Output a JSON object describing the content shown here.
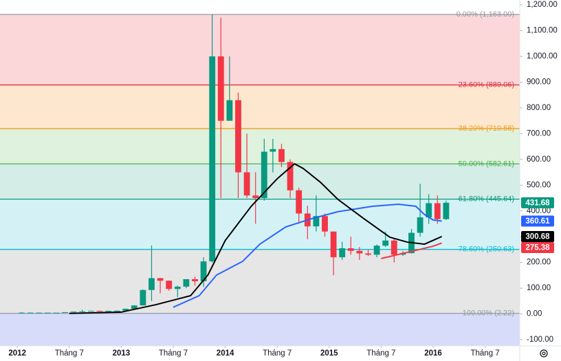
{
  "chart_data": {
    "type": "candlestick",
    "x": [
      "2012-01",
      "2012-02",
      "2012-03",
      "2012-04",
      "2012-05",
      "2012-06",
      "2012-07",
      "2012-08",
      "2012-09",
      "2012-10",
      "2012-11",
      "2012-12",
      "2013-01",
      "2013-02",
      "2013-03",
      "2013-04",
      "2013-05",
      "2013-06",
      "2013-07",
      "2013-08",
      "2013-09",
      "2013-10",
      "2013-11",
      "2013-12",
      "2014-01",
      "2014-02",
      "2014-03",
      "2014-04",
      "2014-05",
      "2014-06",
      "2014-07",
      "2014-08",
      "2014-09",
      "2014-10",
      "2014-11",
      "2014-12",
      "2015-01",
      "2015-02",
      "2015-03",
      "2015-04",
      "2015-05",
      "2015-06",
      "2015-07",
      "2015-08",
      "2015-09",
      "2015-10",
      "2015-11",
      "2015-12",
      "2016-01",
      "2016-02"
    ],
    "open": [
      5,
      5,
      5,
      5,
      5,
      5,
      7,
      9,
      10,
      12,
      11,
      12,
      13,
      20,
      33,
      93,
      139,
      129,
      97,
      106,
      135,
      127,
      204,
      1000,
      750,
      830,
      550,
      460,
      450,
      630,
      640,
      590,
      480,
      390,
      340,
      380,
      320,
      220,
      255,
      245,
      235,
      230,
      265,
      285,
      230,
      236,
      315,
      375,
      430,
      368
    ],
    "high": [
      7,
      6,
      5,
      5,
      5,
      7,
      9,
      16,
      13,
      13,
      13,
      14,
      21,
      34,
      95,
      266,
      140,
      130,
      110,
      135,
      145,
      220,
      1163,
      1150,
      1000,
      860,
      700,
      550,
      680,
      680,
      660,
      600,
      490,
      420,
      460,
      390,
      320,
      280,
      300,
      260,
      250,
      270,
      320,
      290,
      245,
      330,
      505,
      465,
      460,
      440
    ],
    "low": [
      4,
      4,
      4,
      5,
      5,
      5,
      6,
      7,
      10,
      10,
      10,
      12,
      13,
      20,
      33,
      50,
      80,
      90,
      65,
      100,
      110,
      105,
      200,
      450,
      750,
      450,
      450,
      350,
      440,
      550,
      570,
      450,
      350,
      290,
      320,
      300,
      150,
      210,
      230,
      210,
      225,
      220,
      260,
      200,
      225,
      235,
      300,
      350,
      350,
      365
    ],
    "close": [
      5,
      5,
      5,
      5,
      5,
      7,
      9,
      10,
      12,
      11,
      12,
      13,
      20,
      33,
      93,
      139,
      129,
      97,
      106,
      135,
      127,
      204,
      1000,
      750,
      830,
      550,
      460,
      450,
      630,
      640,
      590,
      480,
      390,
      340,
      380,
      320,
      220,
      255,
      245,
      235,
      230,
      265,
      285,
      230,
      236,
      315,
      375,
      430,
      368,
      431.68
    ],
    "up_color": "#089981",
    "down_color": "#f23645",
    "series": [
      {
        "color": "#2962ff",
        "x": [
          "2013-07",
          "2013-10",
          "2013-12",
          "2014-03",
          "2014-05",
          "2014-08",
          "2014-11",
          "2015-02",
          "2015-06",
          "2015-09",
          "2015-11",
          "2015-12",
          "2016-01",
          "2016-02"
        ],
        "values": [
          26,
          71,
          151,
          204,
          271,
          338,
          370,
          397,
          418,
          426,
          418,
          386,
          365,
          360.61
        ]
      },
      {
        "color": "#000000",
        "x": [
          "2012-07",
          "2013-01",
          "2013-05",
          "2013-09",
          "2013-11",
          "2014-01",
          "2014-04",
          "2014-07",
          "2014-09",
          "2014-10",
          "2014-12",
          "2015-02",
          "2015-05",
          "2015-08",
          "2015-10",
          "2015-12",
          "2016-02"
        ],
        "values": [
          2,
          7,
          36,
          71,
          151,
          285,
          418,
          525,
          583,
          565,
          511,
          445,
          370,
          298,
          279,
          271,
          300.68
        ]
      },
      {
        "color": "#f23645",
        "x": [
          "2015-07",
          "2015-10",
          "2016-01",
          "2016-02"
        ],
        "values": [
          215,
          239,
          263,
          275.38
        ]
      }
    ],
    "fib_levels": [
      {
        "value": 1163,
        "label": "0.00% (1,163.00)",
        "color": "#9598a1",
        "fill": "#fbd7da"
      },
      {
        "value": 889.06,
        "label": "23.60% (889.06)",
        "color": "#e0313f",
        "fill": "#fde7cf"
      },
      {
        "value": 719.58,
        "label": "38.20% (719.58)",
        "color": "#f59c1a",
        "fill": "#def2de"
      },
      {
        "value": 582.61,
        "label": "50.00% (582.61)",
        "color": "#4caf50",
        "fill": "#d4ede6"
      },
      {
        "value": 445.64,
        "label": "61.80% (445.64)",
        "color": "#089981",
        "fill": "#d4f2f5"
      },
      {
        "value": 250.63,
        "label": "78.60% (250.63)",
        "color": "#00bcd4",
        "fill": "#e6e6e6"
      },
      {
        "value": 2.22,
        "label": "100.00% (2.22)",
        "color": "#9598a1",
        "fill": "#d6dcfa"
      }
    ],
    "ylim": [
      -124,
      1219
    ],
    "yticks": [
      {
        "value": 1200,
        "label": "1,200.00"
      },
      {
        "value": 1100,
        "label": "1,100.00"
      },
      {
        "value": 1000,
        "label": "1,000.00"
      },
      {
        "value": 900,
        "label": "900.00"
      },
      {
        "value": 800,
        "label": "800.00"
      },
      {
        "value": 700,
        "label": "700.00"
      },
      {
        "value": 600,
        "label": "600.00"
      },
      {
        "value": 500,
        "label": "500.00"
      },
      {
        "value": 400,
        "label": "400.00"
      },
      {
        "value": 300,
        "label": "300.00"
      },
      {
        "value": 200,
        "label": "200.00"
      },
      {
        "value": 100,
        "label": "100.00"
      },
      {
        "value": 0,
        "label": "0.00"
      },
      {
        "value": -100,
        "label": "-100.00"
      }
    ],
    "xlim": [
      "2011-11",
      "2016-11"
    ],
    "xticks": [
      {
        "value": "2012-01",
        "label": "2012"
      },
      {
        "value": "2012-07",
        "label": "Tháng 7"
      },
      {
        "value": "2013-01",
        "label": "2013"
      },
      {
        "value": "2013-07",
        "label": "Tháng 7"
      },
      {
        "value": "2014-01",
        "label": "2014"
      },
      {
        "value": "2014-07",
        "label": "Tháng 7"
      },
      {
        "value": "2015-01",
        "label": "2015"
      },
      {
        "value": "2015-07",
        "label": "Tháng 7"
      },
      {
        "value": "2016-01",
        "label": "2016"
      },
      {
        "value": "2016-07",
        "label": "Tháng 7"
      }
    ]
  }
}
